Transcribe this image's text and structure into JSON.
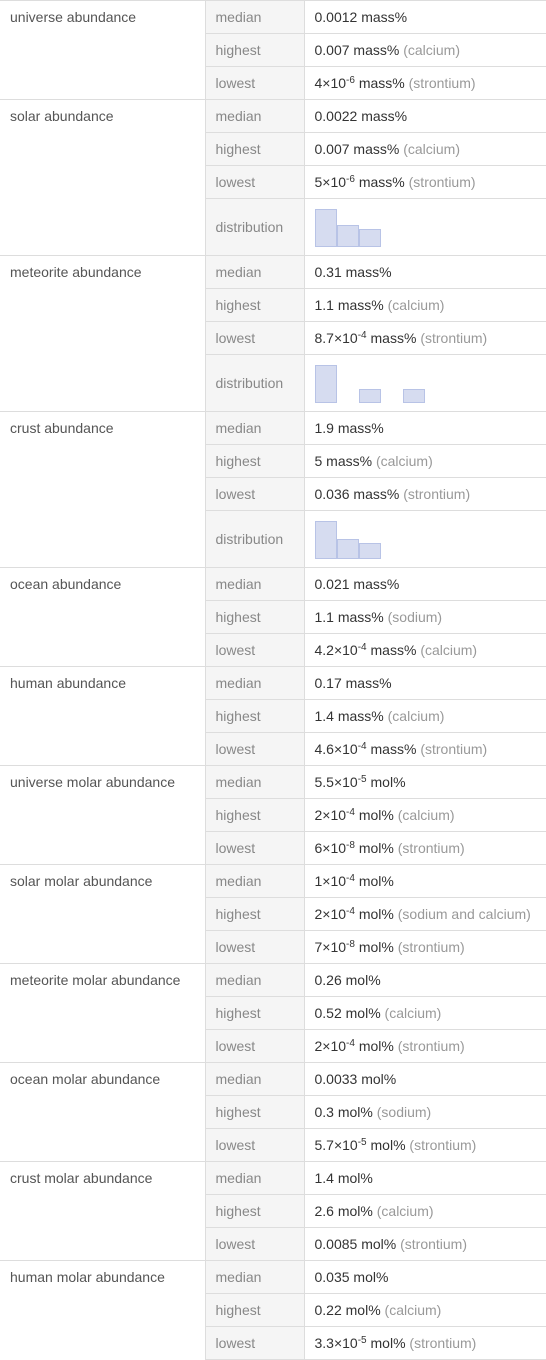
{
  "colors": {
    "bar_fill": "#d6dcf0",
    "bar_border": "#b8c3e6",
    "label_bg": "#f5f5f5",
    "border": "#ddd"
  },
  "groups": [
    {
      "name": "universe abundance",
      "rows": [
        {
          "label": "median",
          "value": "0.0012 mass%"
        },
        {
          "label": "highest",
          "value": "0.007 mass%",
          "element": "(calcium)"
        },
        {
          "label": "lowest",
          "value_html": "4×10<sup>-6</sup> mass%",
          "element": "(strontium)"
        }
      ]
    },
    {
      "name": "solar abundance",
      "rows": [
        {
          "label": "median",
          "value": "0.0022 mass%"
        },
        {
          "label": "highest",
          "value": "0.007 mass%",
          "element": "(calcium)"
        },
        {
          "label": "lowest",
          "value_html": "5×10<sup>-6</sup> mass%",
          "element": "(strontium)"
        },
        {
          "label": "distribution",
          "distribution": [
            38,
            22,
            18
          ]
        }
      ]
    },
    {
      "name": "meteorite abundance",
      "rows": [
        {
          "label": "median",
          "value": "0.31 mass%"
        },
        {
          "label": "highest",
          "value": "1.1 mass%",
          "element": "(calcium)"
        },
        {
          "label": "lowest",
          "value_html": "8.7×10<sup>-4</sup> mass%",
          "element": "(strontium)"
        },
        {
          "label": "distribution",
          "distribution": [
            38,
            0,
            14,
            0,
            14
          ]
        }
      ]
    },
    {
      "name": "crust abundance",
      "rows": [
        {
          "label": "median",
          "value": "1.9 mass%"
        },
        {
          "label": "highest",
          "value": "5 mass%",
          "element": "(calcium)"
        },
        {
          "label": "lowest",
          "value": "0.036 mass%",
          "element": "(strontium)"
        },
        {
          "label": "distribution",
          "distribution": [
            38,
            20,
            16
          ]
        }
      ]
    },
    {
      "name": "ocean abundance",
      "rows": [
        {
          "label": "median",
          "value": "0.021 mass%"
        },
        {
          "label": "highest",
          "value": "1.1 mass%",
          "element": "(sodium)"
        },
        {
          "label": "lowest",
          "value_html": "4.2×10<sup>-4</sup> mass%",
          "element": "(calcium)"
        }
      ]
    },
    {
      "name": "human abundance",
      "rows": [
        {
          "label": "median",
          "value": "0.17 mass%"
        },
        {
          "label": "highest",
          "value": "1.4 mass%",
          "element": "(calcium)"
        },
        {
          "label": "lowest",
          "value_html": "4.6×10<sup>-4</sup> mass%",
          "element": "(strontium)"
        }
      ]
    },
    {
      "name": "universe molar abundance",
      "rows": [
        {
          "label": "median",
          "value_html": "5.5×10<sup>-5</sup> mol%"
        },
        {
          "label": "highest",
          "value_html": "2×10<sup>-4</sup> mol%",
          "element": "(calcium)"
        },
        {
          "label": "lowest",
          "value_html": "6×10<sup>-8</sup> mol%",
          "element": "(strontium)"
        }
      ]
    },
    {
      "name": "solar molar abundance",
      "rows": [
        {
          "label": "median",
          "value_html": "1×10<sup>-4</sup> mol%"
        },
        {
          "label": "highest",
          "value_html": "2×10<sup>-4</sup> mol%",
          "element": "(sodium and calcium)"
        },
        {
          "label": "lowest",
          "value_html": "7×10<sup>-8</sup> mol%",
          "element": "(strontium)"
        }
      ]
    },
    {
      "name": "meteorite molar abundance",
      "rows": [
        {
          "label": "median",
          "value": "0.26 mol%"
        },
        {
          "label": "highest",
          "value": "0.52 mol%",
          "element": "(calcium)"
        },
        {
          "label": "lowest",
          "value_html": "2×10<sup>-4</sup> mol%",
          "element": "(strontium)"
        }
      ]
    },
    {
      "name": "ocean molar abundance",
      "rows": [
        {
          "label": "median",
          "value": "0.0033 mol%"
        },
        {
          "label": "highest",
          "value": "0.3 mol%",
          "element": "(sodium)"
        },
        {
          "label": "lowest",
          "value_html": "5.7×10<sup>-5</sup> mol%",
          "element": "(strontium)"
        }
      ]
    },
    {
      "name": "crust molar abundance",
      "rows": [
        {
          "label": "median",
          "value": "1.4 mol%"
        },
        {
          "label": "highest",
          "value": "2.6 mol%",
          "element": "(calcium)"
        },
        {
          "label": "lowest",
          "value": "0.0085 mol%",
          "element": "(strontium)"
        }
      ]
    },
    {
      "name": "human molar abundance",
      "rows": [
        {
          "label": "median",
          "value": "0.035 mol%"
        },
        {
          "label": "highest",
          "value": "0.22 mol%",
          "element": "(calcium)"
        },
        {
          "label": "lowest",
          "value_html": "3.3×10<sup>-5</sup> mol%",
          "element": "(strontium)"
        }
      ]
    }
  ]
}
